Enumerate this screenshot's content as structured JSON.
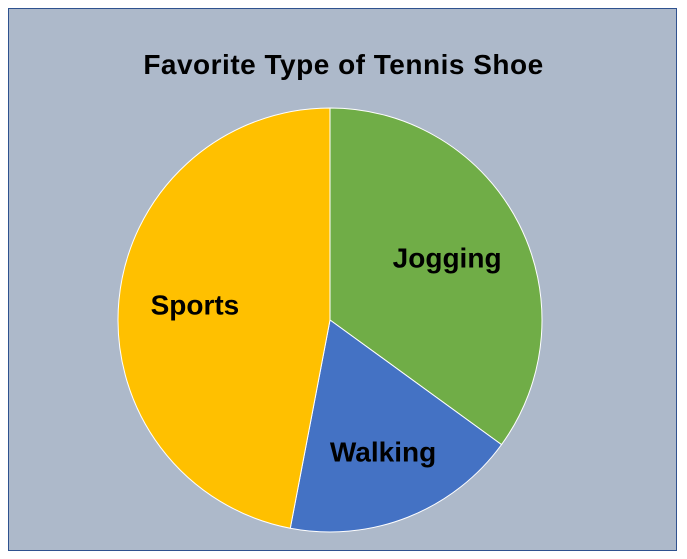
{
  "chart_data": {
    "type": "pie",
    "title": "Favorite Type of Tennis Shoe",
    "slices": [
      {
        "label": "Jogging",
        "value": 35,
        "color": "#70ad47"
      },
      {
        "label": "Walking",
        "value": 18,
        "color": "#4472c4"
      },
      {
        "label": "Sports",
        "value": 47,
        "color": "#ffc000"
      }
    ],
    "start": "12 o'clock",
    "direction": "clockwise",
    "legend": "none",
    "background_color": "#adb9ca",
    "border_color": "#2f528f"
  }
}
